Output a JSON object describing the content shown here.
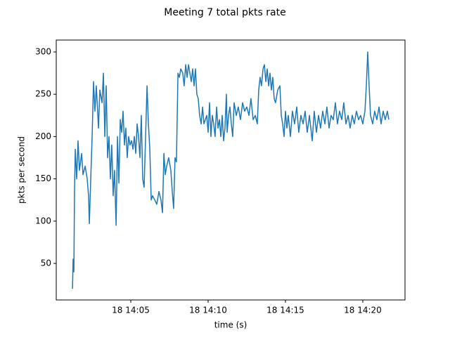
{
  "chart_data": {
    "type": "line",
    "title": "Meeting 7 total pkts rate",
    "xlabel": "time (s)",
    "ylabel": "pkts per second",
    "color": "#1f77b4",
    "x": [
      1.23,
      1.27,
      1.32,
      1.36,
      1.41,
      1.5,
      1.59,
      1.68,
      1.82,
      1.91,
      2.05,
      2.18,
      2.27,
      2.32,
      2.41,
      2.5,
      2.59,
      2.68,
      2.77,
      2.91,
      3.0,
      3.14,
      3.23,
      3.32,
      3.41,
      3.5,
      3.59,
      3.68,
      3.77,
      3.86,
      3.95,
      4.05,
      4.14,
      4.23,
      4.32,
      4.41,
      4.5,
      4.59,
      4.68,
      4.77,
      4.86,
      4.95,
      5.05,
      5.14,
      5.23,
      5.32,
      5.41,
      5.5,
      5.59,
      5.68,
      5.77,
      5.86,
      5.95,
      6.05,
      6.14,
      6.23,
      6.32,
      6.41,
      6.55,
      6.68,
      6.82,
      6.95,
      7.05,
      7.14,
      7.23,
      7.32,
      7.45,
      7.59,
      7.68,
      7.77,
      7.86,
      7.95,
      8.05,
      8.14,
      8.23,
      8.36,
      8.45,
      8.55,
      8.64,
      8.73,
      8.82,
      8.91,
      9.0,
      9.09,
      9.18,
      9.27,
      9.36,
      9.45,
      9.55,
      9.64,
      9.73,
      9.82,
      9.91,
      10.0,
      10.09,
      10.18,
      10.27,
      10.36,
      10.45,
      10.55,
      10.64,
      10.73,
      10.82,
      10.91,
      11.0,
      11.09,
      11.18,
      11.23,
      11.32,
      11.41,
      11.5,
      11.59,
      11.68,
      11.82,
      11.95,
      12.09,
      12.23,
      12.36,
      12.5,
      12.64,
      12.77,
      12.91,
      13.05,
      13.18,
      13.27,
      13.36,
      13.45,
      13.55,
      13.64,
      13.73,
      13.82,
      13.91,
      14.0,
      14.09,
      14.18,
      14.27,
      14.36,
      14.5,
      14.64,
      14.73,
      14.82,
      14.91,
      15.0,
      15.09,
      15.18,
      15.32,
      15.45,
      15.59,
      15.73,
      15.86,
      16.0,
      16.14,
      16.27,
      16.41,
      16.55,
      16.73,
      16.86,
      17.0,
      17.14,
      17.27,
      17.41,
      17.55,
      17.68,
      17.82,
      17.95,
      18.09,
      18.23,
      18.36,
      18.5,
      18.64,
      18.77,
      18.91,
      19.05,
      19.18,
      19.32,
      19.45,
      19.59,
      19.73,
      19.86,
      20.0,
      20.14,
      20.23,
      20.32,
      20.41,
      20.5,
      20.64,
      20.77,
      20.91,
      21.05,
      21.18,
      21.32,
      21.45,
      21.59,
      21.68
    ],
    "values": [
      20,
      55,
      40,
      135,
      185,
      150,
      195,
      160,
      180,
      155,
      165,
      150,
      130,
      97,
      150,
      200,
      265,
      230,
      260,
      210,
      255,
      240,
      275,
      200,
      260,
      175,
      200,
      150,
      190,
      130,
      160,
      95,
      200,
      145,
      220,
      205,
      230,
      190,
      210,
      175,
      200,
      190,
      195,
      185,
      200,
      180,
      215,
      200,
      175,
      225,
      150,
      140,
      195,
      260,
      215,
      185,
      125,
      130,
      125,
      120,
      135,
      125,
      110,
      180,
      155,
      165,
      175,
      160,
      135,
      115,
      175,
      170,
      275,
      270,
      280,
      275,
      260,
      285,
      270,
      285,
      275,
      265,
      280,
      260,
      280,
      250,
      245,
      225,
      215,
      235,
      215,
      220,
      225,
      205,
      240,
      200,
      225,
      215,
      200,
      235,
      210,
      220,
      200,
      225,
      195,
      210,
      250,
      205,
      225,
      235,
      215,
      200,
      240,
      225,
      235,
      220,
      240,
      230,
      235,
      225,
      245,
      220,
      225,
      215,
      255,
      270,
      260,
      280,
      285,
      265,
      280,
      260,
      275,
      255,
      270,
      245,
      240,
      255,
      260,
      225,
      215,
      200,
      230,
      210,
      225,
      200,
      230,
      215,
      235,
      205,
      225,
      215,
      230,
      205,
      225,
      195,
      230,
      205,
      225,
      210,
      230,
      215,
      235,
      210,
      225,
      220,
      240,
      215,
      230,
      220,
      240,
      215,
      225,
      210,
      225,
      215,
      230,
      220,
      225,
      215,
      230,
      260,
      300,
      260,
      225,
      215,
      230,
      220,
      235,
      215,
      230,
      220,
      230,
      220
    ],
    "xlim": [
      0.18,
      22.73
    ],
    "ylim": [
      6.8,
      314.1
    ],
    "xticks": [
      {
        "value": 5,
        "label": "18 14:05"
      },
      {
        "value": 10,
        "label": "18 14:10"
      },
      {
        "value": 15,
        "label": "18 14:15"
      },
      {
        "value": 20,
        "label": "18 14:20"
      }
    ],
    "yticks": [
      50,
      100,
      150,
      200,
      250,
      300
    ]
  }
}
